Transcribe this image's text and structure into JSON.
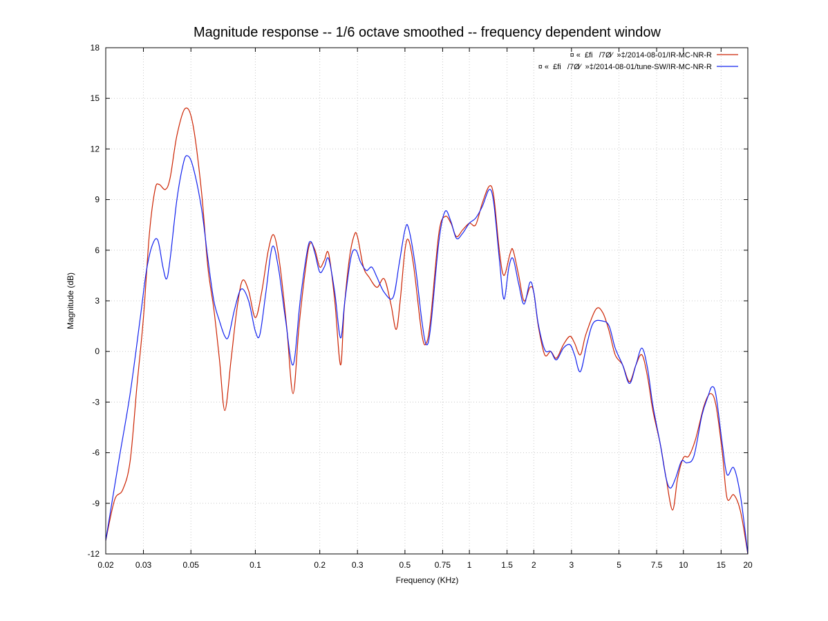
{
  "chart_data": {
    "type": "line",
    "title": "Magnitude response -- 1/6 octave smoothed -- frequency dependent window",
    "xlabel": "Frequency (KHz)",
    "ylabel": "Magnitude (dB)",
    "xscale": "log",
    "xlim": [
      0.02,
      20
    ],
    "ylim": [
      -12,
      18
    ],
    "grid": true,
    "legend_position": "top-right",
    "x_ticks": [
      0.02,
      0.03,
      0.05,
      0.1,
      0.2,
      0.3,
      0.5,
      0.75,
      1,
      1.5,
      2,
      3,
      5,
      7.5,
      10,
      15,
      20
    ],
    "x_tick_labels": [
      "0.02",
      "0.03",
      "0.05",
      "0.1",
      "0.2",
      "0.3",
      "0.5",
      "0.75",
      "1",
      "1.5",
      "2",
      "3",
      "5",
      "7.5",
      "10",
      "15",
      "20"
    ],
    "y_ticks": [
      -12,
      -9,
      -6,
      -3,
      0,
      3,
      6,
      9,
      12,
      15,
      18
    ],
    "y_tick_labels": [
      "-12",
      "-9",
      "-6",
      "-3",
      "0",
      "3",
      "6",
      "9",
      "12",
      "15",
      "18"
    ],
    "series": [
      {
        "name": "¤ «  £fi   /7Ø⁄  »‡/2014-08-01/IR-MC-NR-R",
        "color": "#cc2200",
        "points": [
          [
            0.02,
            -11.2
          ],
          [
            0.022,
            -8.8
          ],
          [
            0.024,
            -8.2
          ],
          [
            0.026,
            -6.5
          ],
          [
            0.028,
            -2.0
          ],
          [
            0.03,
            2.0
          ],
          [
            0.032,
            7.0
          ],
          [
            0.034,
            9.6
          ],
          [
            0.0355,
            9.9
          ],
          [
            0.038,
            9.6
          ],
          [
            0.04,
            10.3
          ],
          [
            0.043,
            12.8
          ],
          [
            0.047,
            14.4
          ],
          [
            0.051,
            13.5
          ],
          [
            0.056,
            9.5
          ],
          [
            0.06,
            5.0
          ],
          [
            0.064,
            2.5
          ],
          [
            0.068,
            -0.5
          ],
          [
            0.072,
            -3.5
          ],
          [
            0.077,
            -0.5
          ],
          [
            0.082,
            2.5
          ],
          [
            0.087,
            4.2
          ],
          [
            0.093,
            3.6
          ],
          [
            0.1,
            2.0
          ],
          [
            0.107,
            3.5
          ],
          [
            0.115,
            6.0
          ],
          [
            0.122,
            6.9
          ],
          [
            0.13,
            5.2
          ],
          [
            0.14,
            1.5
          ],
          [
            0.15,
            -2.5
          ],
          [
            0.16,
            1.5
          ],
          [
            0.172,
            5.0
          ],
          [
            0.18,
            6.4
          ],
          [
            0.19,
            6.0
          ],
          [
            0.2,
            5.0
          ],
          [
            0.21,
            5.4
          ],
          [
            0.22,
            5.8
          ],
          [
            0.235,
            3.0
          ],
          [
            0.25,
            -0.8
          ],
          [
            0.26,
            2.5
          ],
          [
            0.275,
            5.5
          ],
          [
            0.29,
            6.9
          ],
          [
            0.3,
            6.8
          ],
          [
            0.32,
            5.0
          ],
          [
            0.34,
            4.4
          ],
          [
            0.37,
            3.8
          ],
          [
            0.4,
            4.3
          ],
          [
            0.43,
            2.8
          ],
          [
            0.455,
            1.3
          ],
          [
            0.475,
            3.0
          ],
          [
            0.5,
            6.0
          ],
          [
            0.52,
            6.6
          ],
          [
            0.55,
            5.0
          ],
          [
            0.6,
            1.0
          ],
          [
            0.63,
            0.5
          ],
          [
            0.66,
            2.0
          ],
          [
            0.72,
            7.0
          ],
          [
            0.77,
            8.0
          ],
          [
            0.82,
            7.6
          ],
          [
            0.87,
            6.8
          ],
          [
            0.93,
            7.2
          ],
          [
            1.0,
            7.6
          ],
          [
            1.07,
            7.5
          ],
          [
            1.15,
            8.8
          ],
          [
            1.24,
            9.8
          ],
          [
            1.3,
            9.2
          ],
          [
            1.38,
            6.0
          ],
          [
            1.45,
            4.5
          ],
          [
            1.55,
            5.8
          ],
          [
            1.6,
            6.0
          ],
          [
            1.7,
            4.5
          ],
          [
            1.8,
            3.0
          ],
          [
            1.92,
            3.8
          ],
          [
            2.0,
            3.5
          ],
          [
            2.1,
            1.5
          ],
          [
            2.25,
            -0.2
          ],
          [
            2.4,
            0.0
          ],
          [
            2.55,
            -0.4
          ],
          [
            2.75,
            0.4
          ],
          [
            2.95,
            0.9
          ],
          [
            3.1,
            0.5
          ],
          [
            3.3,
            -0.2
          ],
          [
            3.5,
            1.0
          ],
          [
            3.9,
            2.5
          ],
          [
            4.2,
            2.3
          ],
          [
            4.5,
            1.2
          ],
          [
            4.8,
            -0.2
          ],
          [
            5.2,
            -0.8
          ],
          [
            5.6,
            -1.8
          ],
          [
            6.0,
            -0.8
          ],
          [
            6.4,
            -0.2
          ],
          [
            6.8,
            -1.5
          ],
          [
            7.2,
            -3.5
          ],
          [
            7.8,
            -5.5
          ],
          [
            8.3,
            -7.5
          ],
          [
            8.9,
            -9.4
          ],
          [
            9.4,
            -7.5
          ],
          [
            10.0,
            -6.3
          ],
          [
            10.6,
            -6.2
          ],
          [
            11.4,
            -5.2
          ],
          [
            12.5,
            -3.2
          ],
          [
            13.4,
            -2.5
          ],
          [
            14.2,
            -3.2
          ],
          [
            15.2,
            -6.0
          ],
          [
            16.0,
            -8.7
          ],
          [
            17.2,
            -8.5
          ],
          [
            18.5,
            -9.5
          ],
          [
            20.0,
            -12.0
          ]
        ]
      },
      {
        "name": "¤ «  £fi   /7Ø⁄  »‡/2014-08-01/tune-SW/IR-MC-NR-R",
        "color": "#1020ee",
        "points": [
          [
            0.02,
            -11.2
          ],
          [
            0.023,
            -6.5
          ],
          [
            0.026,
            -2.5
          ],
          [
            0.029,
            2.0
          ],
          [
            0.031,
            4.8
          ],
          [
            0.033,
            6.3
          ],
          [
            0.035,
            6.6
          ],
          [
            0.037,
            5.0
          ],
          [
            0.0385,
            4.3
          ],
          [
            0.04,
            5.5
          ],
          [
            0.043,
            9.0
          ],
          [
            0.046,
            11.1
          ],
          [
            0.048,
            11.6
          ],
          [
            0.051,
            11.0
          ],
          [
            0.056,
            8.5
          ],
          [
            0.06,
            5.5
          ],
          [
            0.064,
            3.0
          ],
          [
            0.068,
            1.8
          ],
          [
            0.072,
            0.9
          ],
          [
            0.075,
            0.9
          ],
          [
            0.08,
            2.5
          ],
          [
            0.086,
            3.7
          ],
          [
            0.093,
            3.0
          ],
          [
            0.1,
            1.2
          ],
          [
            0.105,
            1.0
          ],
          [
            0.112,
            3.5
          ],
          [
            0.12,
            6.2
          ],
          [
            0.128,
            5.0
          ],
          [
            0.138,
            2.0
          ],
          [
            0.15,
            -0.8
          ],
          [
            0.162,
            3.0
          ],
          [
            0.175,
            6.0
          ],
          [
            0.182,
            6.5
          ],
          [
            0.19,
            5.8
          ],
          [
            0.2,
            4.7
          ],
          [
            0.21,
            5.0
          ],
          [
            0.22,
            5.5
          ],
          [
            0.235,
            3.5
          ],
          [
            0.25,
            0.8
          ],
          [
            0.262,
            3.0
          ],
          [
            0.28,
            5.6
          ],
          [
            0.295,
            6.0
          ],
          [
            0.31,
            5.3
          ],
          [
            0.33,
            4.8
          ],
          [
            0.35,
            5.0
          ],
          [
            0.37,
            4.4
          ],
          [
            0.4,
            3.5
          ],
          [
            0.44,
            3.2
          ],
          [
            0.47,
            5.2
          ],
          [
            0.5,
            7.2
          ],
          [
            0.52,
            7.3
          ],
          [
            0.56,
            5.0
          ],
          [
            0.6,
            1.8
          ],
          [
            0.63,
            0.4
          ],
          [
            0.66,
            1.5
          ],
          [
            0.72,
            6.5
          ],
          [
            0.77,
            8.3
          ],
          [
            0.82,
            7.7
          ],
          [
            0.87,
            6.7
          ],
          [
            0.93,
            7.0
          ],
          [
            1.0,
            7.6
          ],
          [
            1.07,
            7.9
          ],
          [
            1.15,
            8.6
          ],
          [
            1.24,
            9.6
          ],
          [
            1.3,
            8.8
          ],
          [
            1.38,
            5.5
          ],
          [
            1.45,
            3.1
          ],
          [
            1.53,
            5.0
          ],
          [
            1.6,
            5.5
          ],
          [
            1.7,
            4.0
          ],
          [
            1.8,
            2.8
          ],
          [
            1.92,
            4.1
          ],
          [
            2.0,
            3.5
          ],
          [
            2.1,
            1.6
          ],
          [
            2.25,
            0.1
          ],
          [
            2.4,
            0.0
          ],
          [
            2.55,
            -0.5
          ],
          [
            2.75,
            0.2
          ],
          [
            2.95,
            0.4
          ],
          [
            3.1,
            -0.2
          ],
          [
            3.3,
            -1.2
          ],
          [
            3.55,
            0.5
          ],
          [
            3.8,
            1.7
          ],
          [
            4.2,
            1.8
          ],
          [
            4.5,
            1.5
          ],
          [
            4.8,
            0.2
          ],
          [
            5.2,
            -0.8
          ],
          [
            5.6,
            -1.9
          ],
          [
            6.0,
            -0.8
          ],
          [
            6.4,
            0.2
          ],
          [
            6.8,
            -1.0
          ],
          [
            7.2,
            -3.2
          ],
          [
            7.8,
            -5.5
          ],
          [
            8.3,
            -7.5
          ],
          [
            8.7,
            -8.1
          ],
          [
            9.2,
            -7.5
          ],
          [
            9.8,
            -6.5
          ],
          [
            10.4,
            -6.6
          ],
          [
            11.2,
            -6.2
          ],
          [
            12.2,
            -3.8
          ],
          [
            13.0,
            -2.7
          ],
          [
            13.6,
            -2.1
          ],
          [
            14.2,
            -2.6
          ],
          [
            15.2,
            -5.5
          ],
          [
            16.0,
            -7.3
          ],
          [
            17.2,
            -6.9
          ],
          [
            18.5,
            -8.6
          ],
          [
            20.0,
            -12.0
          ]
        ]
      }
    ]
  }
}
